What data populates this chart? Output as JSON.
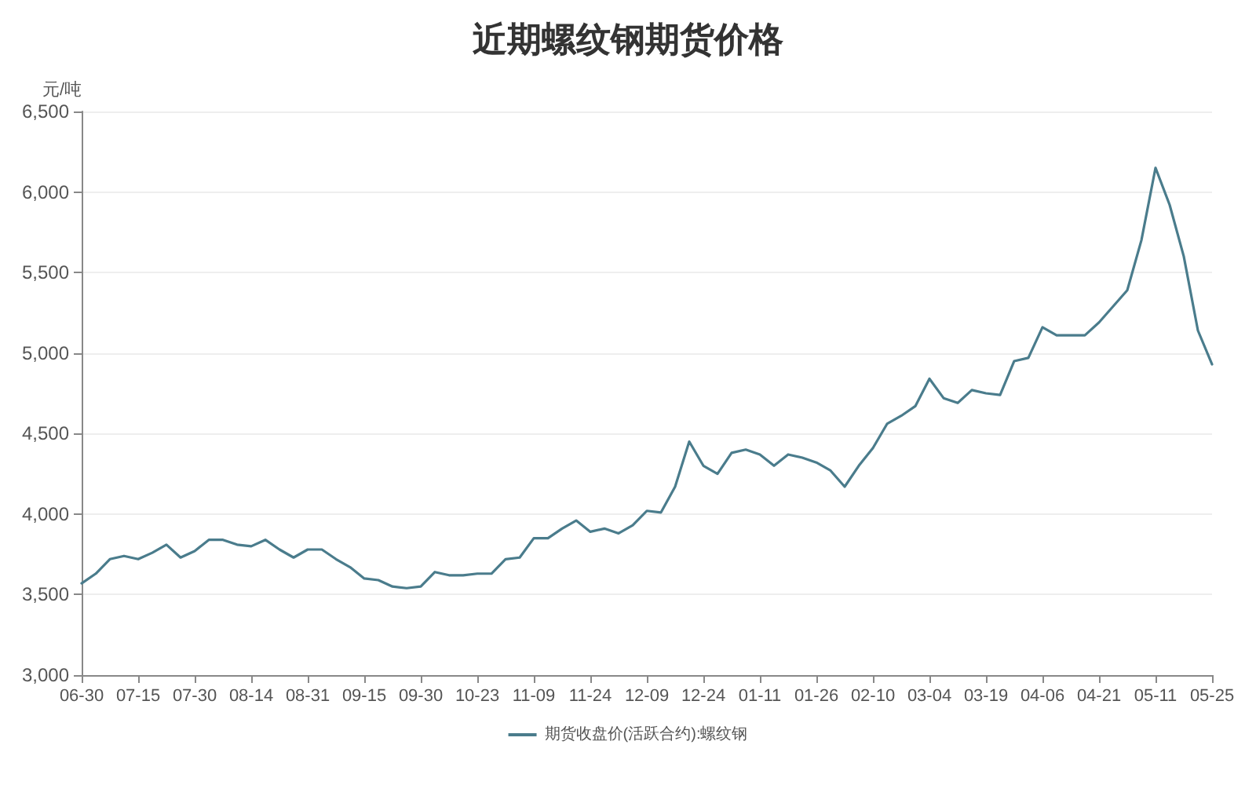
{
  "chart_data": {
    "type": "line",
    "title": "近期螺纹钢期货价格",
    "ylabel": "元/吨",
    "categories": [
      "06-30",
      null,
      null,
      null,
      "07-15",
      null,
      null,
      null,
      "07-30",
      null,
      null,
      null,
      "08-14",
      null,
      null,
      null,
      "08-31",
      null,
      null,
      null,
      "09-15",
      null,
      null,
      null,
      "09-30",
      null,
      null,
      null,
      "10-23",
      null,
      null,
      null,
      "11-09",
      null,
      null,
      null,
      "11-24",
      null,
      null,
      null,
      "12-09",
      null,
      null,
      null,
      "12-24",
      null,
      null,
      null,
      "01-11",
      null,
      null,
      null,
      "01-26",
      null,
      null,
      null,
      "02-10",
      null,
      null,
      null,
      "03-04",
      null,
      null,
      null,
      "03-19",
      null,
      null,
      null,
      "04-06",
      null,
      null,
      null,
      "04-21",
      null,
      null,
      null,
      "05-11",
      null,
      null,
      null,
      "05-25"
    ],
    "series": [
      {
        "name": "期货收盘价(活跃合约):螺纹钢",
        "color": "#4a7c8c",
        "values": [
          3570,
          3630,
          3720,
          3740,
          3720,
          3760,
          3810,
          3730,
          3770,
          3840,
          3840,
          3810,
          3800,
          3840,
          3780,
          3730,
          3780,
          3780,
          3720,
          3670,
          3600,
          3590,
          3550,
          3540,
          3550,
          3640,
          3620,
          3620,
          3630,
          3630,
          3720,
          3730,
          3850,
          3850,
          3910,
          3960,
          3890,
          3910,
          3880,
          3930,
          4020,
          4010,
          4170,
          4450,
          4300,
          4250,
          4380,
          4400,
          4370,
          4300,
          4370,
          4350,
          4320,
          4270,
          4170,
          4300,
          4410,
          4560,
          4610,
          4670,
          4840,
          4720,
          4690,
          4770,
          4750,
          4740,
          4950,
          4970,
          5160,
          5110,
          5110,
          5110,
          5190,
          5290,
          5390,
          5700,
          6150,
          5920,
          5600,
          5140,
          4930
        ]
      }
    ],
    "ylim": [
      3000,
      6500
    ],
    "yticks": [
      {
        "value": 3000,
        "label": "3,000"
      },
      {
        "value": 3500,
        "label": "3,500"
      },
      {
        "value": 4000,
        "label": "4,000"
      },
      {
        "value": 4500,
        "label": "4,500"
      },
      {
        "value": 5000,
        "label": "5,000"
      },
      {
        "value": 5500,
        "label": "5,500"
      },
      {
        "value": 6000,
        "label": "6,000"
      },
      {
        "value": 6500,
        "label": "6,500"
      }
    ],
    "grid": "y",
    "legend": "bottom",
    "marker": "none",
    "line_style": "solid"
  }
}
